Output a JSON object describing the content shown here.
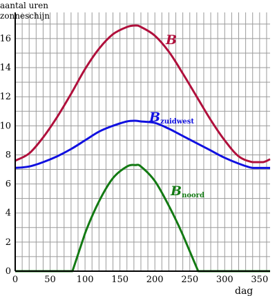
{
  "chart_data": {
    "type": "line",
    "title": "",
    "ylabel_line1": "aantal uren",
    "ylabel_line2": "zonneschijn",
    "xlabel": "dag",
    "xlim": [
      0,
      365
    ],
    "ylim": [
      0,
      17.8
    ],
    "grid": true,
    "x_ticks": [
      0,
      50,
      100,
      150,
      200,
      250,
      300,
      350
    ],
    "y_ticks": [
      0,
      2,
      4,
      6,
      8,
      10,
      12,
      14,
      16
    ],
    "series": [
      {
        "name": "B",
        "name_main": "B",
        "name_sub": "",
        "color": "#b0103c",
        "x": [
          0,
          20,
          40,
          60,
          80,
          100,
          120,
          140,
          160,
          172,
          180,
          200,
          220,
          240,
          260,
          280,
          300,
          320,
          340,
          355,
          365
        ],
        "y": [
          7.6,
          8.1,
          9.2,
          10.6,
          12.2,
          13.9,
          15.3,
          16.3,
          16.8,
          16.9,
          16.8,
          16.2,
          15.1,
          13.6,
          12.0,
          10.4,
          9.0,
          7.9,
          7.5,
          7.5,
          7.7
        ]
      },
      {
        "name": "Bzuidwest",
        "name_main": "B",
        "name_sub": "zuidwest",
        "color": "#1010e0",
        "x": [
          0,
          20,
          40,
          60,
          80,
          100,
          120,
          140,
          160,
          172,
          180,
          200,
          220,
          240,
          260,
          280,
          300,
          320,
          340,
          355,
          365
        ],
        "y": [
          7.1,
          7.2,
          7.5,
          7.9,
          8.4,
          9.0,
          9.6,
          10.0,
          10.3,
          10.35,
          10.3,
          10.2,
          9.8,
          9.3,
          8.8,
          8.3,
          7.8,
          7.4,
          7.1,
          7.1,
          7.1
        ]
      },
      {
        "name": "Bnoord",
        "name_main": "B",
        "name_sub": "noord",
        "color": "#137a13",
        "x": [
          0,
          82,
          100,
          120,
          140,
          160,
          172,
          180,
          200,
          220,
          240,
          262,
          300,
          365
        ],
        "y": [
          0,
          0,
          2.6,
          4.8,
          6.4,
          7.2,
          7.3,
          7.2,
          6.2,
          4.5,
          2.5,
          0,
          0,
          0
        ]
      }
    ]
  }
}
